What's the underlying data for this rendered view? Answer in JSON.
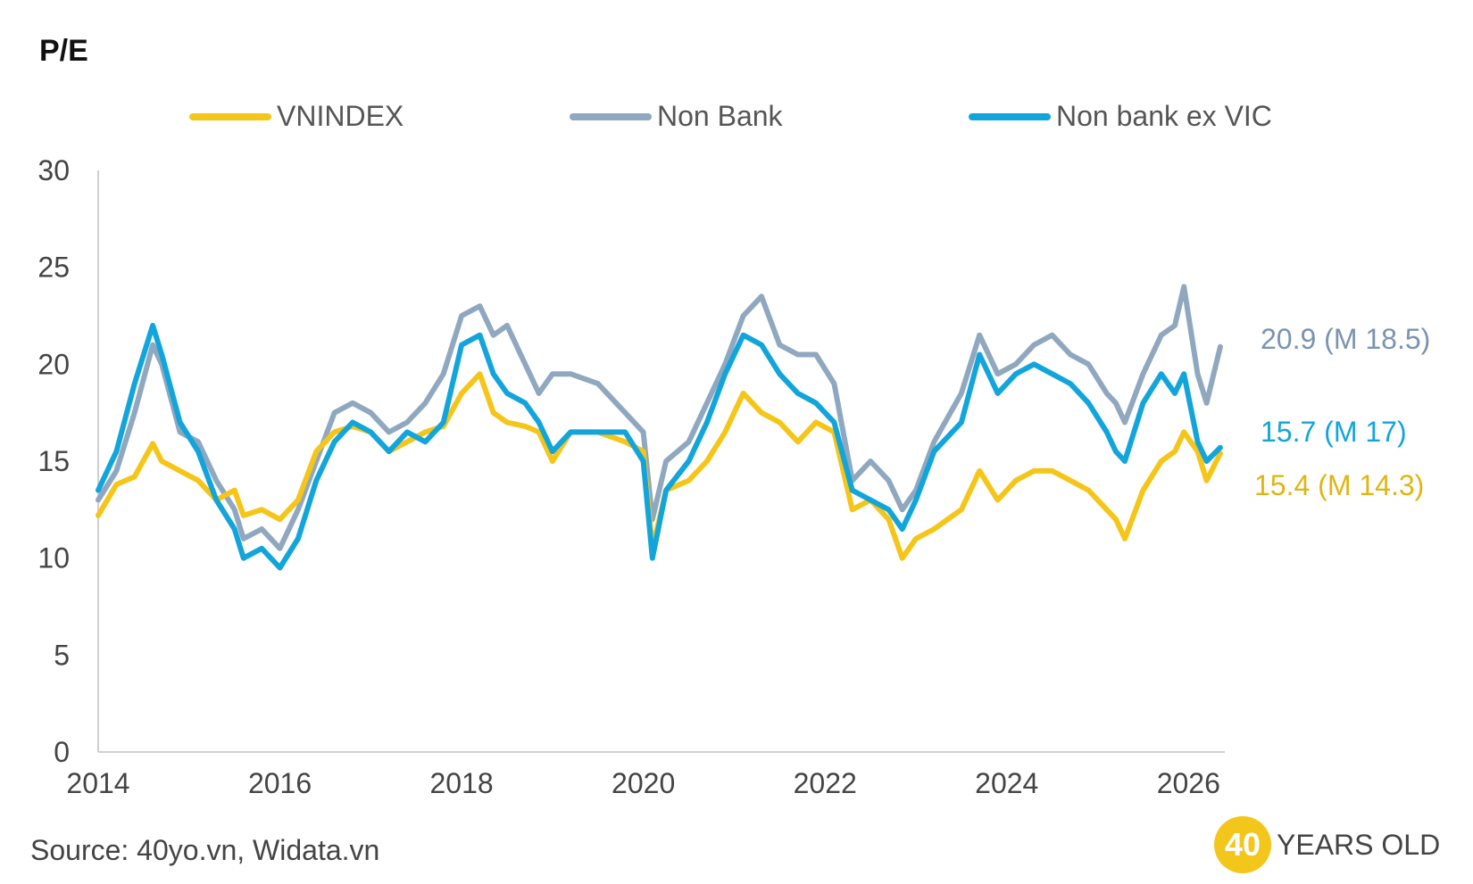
{
  "title": "P/E",
  "source": "Source: 40yo.vn, Widata.vn",
  "logo": {
    "number": "40",
    "text": "YEARS OLD",
    "color": "#f3c61c"
  },
  "chart_data": {
    "type": "line",
    "title": "P/E",
    "xlabel": "",
    "ylabel": "",
    "xlim": [
      2014,
      2026.4
    ],
    "ylim": [
      0,
      30
    ],
    "x_ticks": [
      "2014",
      "2016",
      "2018",
      "2020",
      "2022",
      "2024",
      "2026"
    ],
    "y_ticks": [
      "0",
      "5",
      "10",
      "15",
      "20",
      "25",
      "30"
    ],
    "grid": false,
    "legend_position": "top",
    "series": [
      {
        "name": "VNINDEX",
        "color": "#f5c518",
        "end_label": "15.4 (M 14.3)",
        "x": [
          2014.0,
          2014.2,
          2014.4,
          2014.6,
          2014.7,
          2014.9,
          2015.1,
          2015.3,
          2015.5,
          2015.6,
          2015.8,
          2016.0,
          2016.2,
          2016.4,
          2016.6,
          2016.8,
          2017.0,
          2017.2,
          2017.4,
          2017.6,
          2017.8,
          2018.0,
          2018.2,
          2018.35,
          2018.5,
          2018.7,
          2018.85,
          2019.0,
          2019.2,
          2019.5,
          2019.8,
          2020.0,
          2020.1,
          2020.25,
          2020.5,
          2020.7,
          2020.9,
          2021.1,
          2021.3,
          2021.5,
          2021.7,
          2021.9,
          2022.1,
          2022.3,
          2022.5,
          2022.7,
          2022.85,
          2023.0,
          2023.2,
          2023.5,
          2023.7,
          2023.9,
          2024.1,
          2024.3,
          2024.5,
          2024.7,
          2024.9,
          2025.1,
          2025.2,
          2025.3,
          2025.5,
          2025.7,
          2025.85,
          2025.95,
          2026.1,
          2026.2,
          2026.35
        ],
        "values": [
          12.2,
          13.8,
          14.2,
          15.9,
          15.0,
          14.5,
          14.0,
          13.0,
          13.5,
          12.2,
          12.5,
          12.0,
          13.0,
          15.5,
          16.5,
          16.8,
          16.5,
          15.5,
          16.0,
          16.5,
          16.8,
          18.5,
          19.5,
          17.5,
          17.0,
          16.8,
          16.5,
          15.0,
          16.5,
          16.5,
          16.0,
          15.5,
          10.5,
          13.5,
          14.0,
          15.0,
          16.5,
          18.5,
          17.5,
          17.0,
          16.0,
          17.0,
          16.5,
          12.5,
          13.0,
          12.0,
          10.0,
          11.0,
          11.5,
          12.5,
          14.5,
          13.0,
          14.0,
          14.5,
          14.5,
          14.0,
          13.5,
          12.5,
          12.0,
          11.0,
          13.5,
          15.0,
          15.5,
          16.5,
          15.5,
          14.0,
          15.4
        ]
      },
      {
        "name": "Non Bank",
        "color": "#8fa8c0",
        "end_label": "20.9 (M 18.5)",
        "x": [
          2014.0,
          2014.2,
          2014.4,
          2014.6,
          2014.7,
          2014.9,
          2015.1,
          2015.3,
          2015.5,
          2015.6,
          2015.8,
          2016.0,
          2016.2,
          2016.4,
          2016.6,
          2016.8,
          2017.0,
          2017.2,
          2017.4,
          2017.6,
          2017.8,
          2018.0,
          2018.2,
          2018.35,
          2018.5,
          2018.7,
          2018.85,
          2019.0,
          2019.2,
          2019.5,
          2019.8,
          2020.0,
          2020.1,
          2020.25,
          2020.5,
          2020.7,
          2020.9,
          2021.1,
          2021.3,
          2021.5,
          2021.7,
          2021.9,
          2022.1,
          2022.3,
          2022.5,
          2022.7,
          2022.85,
          2023.0,
          2023.2,
          2023.5,
          2023.7,
          2023.9,
          2024.1,
          2024.3,
          2024.5,
          2024.7,
          2024.9,
          2025.1,
          2025.2,
          2025.3,
          2025.5,
          2025.7,
          2025.85,
          2025.95,
          2026.1,
          2026.2,
          2026.35
        ],
        "values": [
          13.0,
          14.5,
          17.5,
          21.0,
          20.0,
          16.5,
          16.0,
          14.0,
          12.5,
          11.0,
          11.5,
          10.5,
          12.5,
          15.0,
          17.5,
          18.0,
          17.5,
          16.5,
          17.0,
          18.0,
          19.5,
          22.5,
          23.0,
          21.5,
          22.0,
          20.0,
          18.5,
          19.5,
          19.5,
          19.0,
          17.5,
          16.5,
          12.0,
          15.0,
          16.0,
          18.0,
          20.0,
          22.5,
          23.5,
          21.0,
          20.5,
          20.5,
          19.0,
          14.0,
          15.0,
          14.0,
          12.5,
          13.5,
          16.0,
          18.5,
          21.5,
          19.5,
          20.0,
          21.0,
          21.5,
          20.5,
          20.0,
          18.5,
          18.0,
          17.0,
          19.5,
          21.5,
          22.0,
          24.0,
          19.5,
          18.0,
          20.9
        ]
      },
      {
        "name": "Non bank ex VIC",
        "color": "#12a5dc",
        "end_label": "15.7 (M 17)",
        "x": [
          2014.0,
          2014.2,
          2014.4,
          2014.6,
          2014.7,
          2014.9,
          2015.1,
          2015.3,
          2015.5,
          2015.6,
          2015.8,
          2016.0,
          2016.2,
          2016.4,
          2016.6,
          2016.8,
          2017.0,
          2017.2,
          2017.4,
          2017.6,
          2017.8,
          2018.0,
          2018.2,
          2018.35,
          2018.5,
          2018.7,
          2018.85,
          2019.0,
          2019.2,
          2019.5,
          2019.8,
          2020.0,
          2020.1,
          2020.25,
          2020.5,
          2020.7,
          2020.9,
          2021.1,
          2021.3,
          2021.5,
          2021.7,
          2021.9,
          2022.1,
          2022.3,
          2022.5,
          2022.7,
          2022.85,
          2023.0,
          2023.2,
          2023.5,
          2023.7,
          2023.9,
          2024.1,
          2024.3,
          2024.5,
          2024.7,
          2024.9,
          2025.1,
          2025.2,
          2025.3,
          2025.5,
          2025.7,
          2025.85,
          2025.95,
          2026.1,
          2026.2,
          2026.35
        ],
        "values": [
          13.5,
          15.5,
          19.0,
          22.0,
          20.5,
          17.0,
          15.5,
          13.0,
          11.5,
          10.0,
          10.5,
          9.5,
          11.0,
          14.0,
          16.0,
          17.0,
          16.5,
          15.5,
          16.5,
          16.0,
          17.0,
          21.0,
          21.5,
          19.5,
          18.5,
          18.0,
          17.0,
          15.5,
          16.5,
          16.5,
          16.5,
          15.0,
          10.0,
          13.5,
          15.0,
          17.0,
          19.5,
          21.5,
          21.0,
          19.5,
          18.5,
          18.0,
          17.0,
          13.5,
          13.0,
          12.5,
          11.5,
          13.0,
          15.5,
          17.0,
          20.5,
          18.5,
          19.5,
          20.0,
          19.5,
          19.0,
          18.0,
          16.5,
          15.5,
          15.0,
          18.0,
          19.5,
          18.5,
          19.5,
          16.0,
          15.0,
          15.7
        ]
      }
    ]
  }
}
